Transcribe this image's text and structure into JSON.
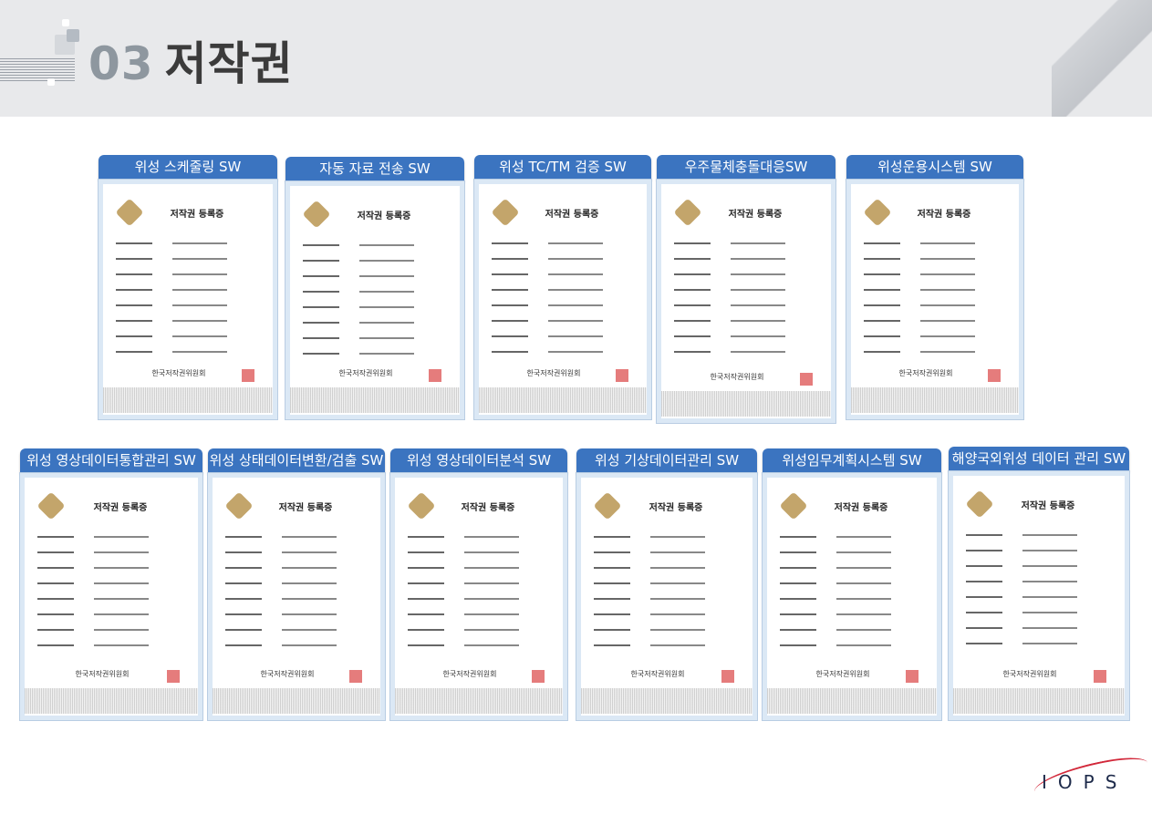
{
  "header": {
    "number": "03",
    "title": "저작권"
  },
  "certificate": {
    "heading": "저작권  등록증",
    "authority": "한국저작권위원회"
  },
  "cards": [
    {
      "label": "위성 스케줄링 SW"
    },
    {
      "label": "자동 자료 전송 SW"
    },
    {
      "label": "위성 TC/TM 검증 SW"
    },
    {
      "label": "우주물체충돌대응SW"
    },
    {
      "label": "위성운용시스템 SW"
    },
    {
      "label": "위성 영상데이터통합관리 SW"
    },
    {
      "label": "위성 상태데이터변환/검출 SW"
    },
    {
      "label": "위성 영상데이터분석 SW"
    },
    {
      "label": "위성 기상데이터관리 SW"
    },
    {
      "label": "위성임무계획시스템 SW"
    },
    {
      "label": "해양국외위성 데이터 관리 SW"
    }
  ],
  "logo": {
    "text": "IOPS",
    "colors": {
      "text": "#1d2a4a",
      "swoosh": "#d2283a"
    }
  },
  "colors": {
    "label_bg": "#3b74c0",
    "header_bg": "#e8e9eb"
  }
}
